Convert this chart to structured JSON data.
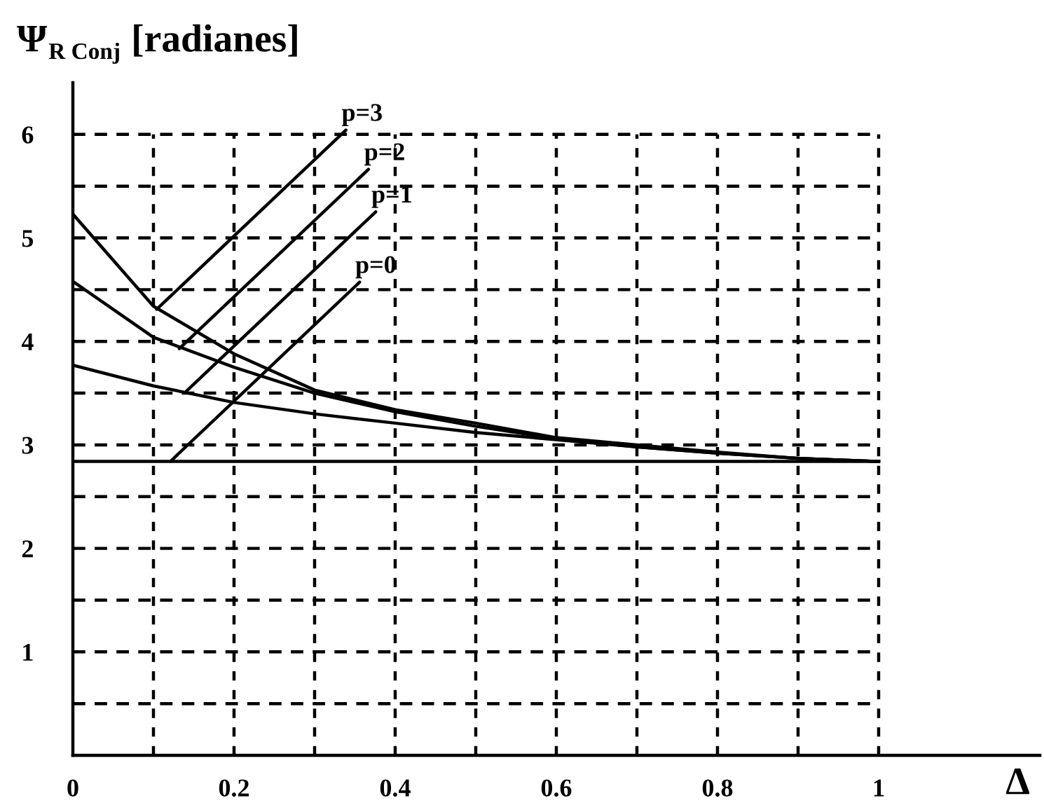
{
  "chart_data": {
    "type": "line",
    "ylabel": "Ψ$_{R Conj}$ [radianes]",
    "xlabel": "Δ",
    "xlim": [
      0,
      1.2
    ],
    "ylim": [
      0,
      6.5
    ],
    "xticks": [
      0,
      {
        "value": 0.1,
        "label": null
      },
      0.2,
      {
        "value": 0.3,
        "label": null
      },
      0.4,
      {
        "value": 0.5,
        "label": null
      },
      0.6,
      {
        "value": 0.7,
        "label": null
      },
      0.8,
      {
        "value": 0.9,
        "label": null
      },
      1
    ],
    "yticks": [
      {
        "value": 0.5,
        "label": null
      },
      1,
      {
        "value": 1.5,
        "label": null
      },
      2,
      {
        "value": 2.5,
        "label": null
      },
      3,
      {
        "value": 3.5,
        "label": null
      },
      4,
      {
        "value": 4.5,
        "label": null
      },
      5,
      {
        "value": 5.5,
        "label": null
      },
      6
    ],
    "grid": true,
    "marker": "none",
    "line_style": "solid",
    "series": [
      {
        "color": "#000000",
        "x": [
          0,
          1
        ],
        "values": [
          2.84,
          2.84
        ]
      },
      {
        "color": "#000000",
        "x": [
          0,
          0.1,
          0.2,
          0.3,
          0.4,
          0.5,
          0.6,
          0.7,
          0.8,
          0.9,
          1
        ],
        "values": [
          3.77,
          3.57,
          3.41,
          3.3,
          3.21,
          3.12,
          3.05,
          2.98,
          2.92,
          2.87,
          2.84
        ]
      },
      {
        "color": "#000000",
        "x": [
          0,
          0.1,
          0.2,
          0.3,
          0.4,
          0.5,
          0.6,
          0.7,
          0.8,
          0.9,
          1
        ],
        "values": [
          4.58,
          4.04,
          3.75,
          3.5,
          3.32,
          3.18,
          3.06,
          2.98,
          2.92,
          2.87,
          2.84
        ]
      },
      {
        "color": "#000000",
        "x": [
          0,
          0.1,
          0.2,
          0.3,
          0.4,
          0.5,
          0.6,
          0.7,
          0.8,
          0.9,
          1
        ],
        "values": [
          5.23,
          4.34,
          3.88,
          3.53,
          3.34,
          3.21,
          3.07,
          3.0,
          2.93,
          2.87,
          2.84
        ]
      }
    ],
    "annotations": [
      {
        "text": "p=3",
        "x": 0.104,
        "y": 4.31
      },
      {
        "text": "p=2",
        "x": 0.132,
        "y": 3.93
      },
      {
        "text": "p=1",
        "x": 0.141,
        "y": 3.52
      },
      {
        "text": "p=0",
        "x": 0.121,
        "y": 2.84
      }
    ]
  }
}
